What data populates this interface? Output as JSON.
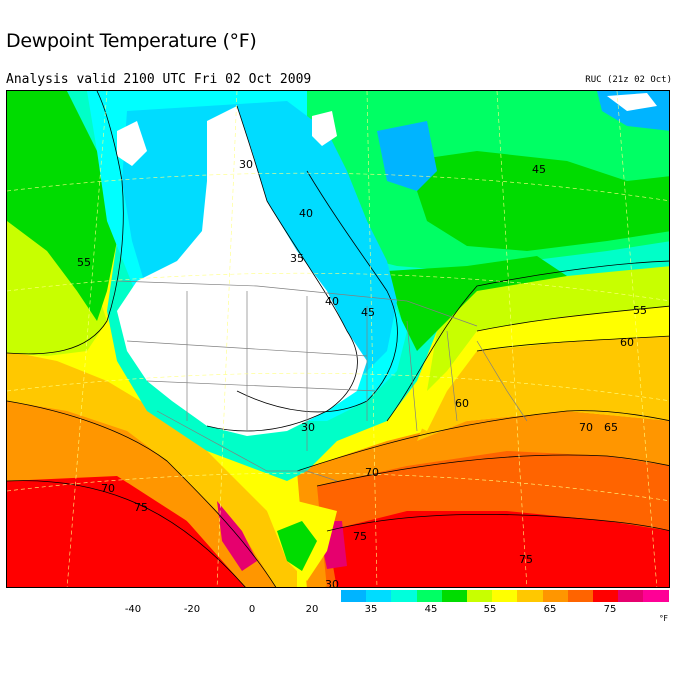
{
  "title": "Dewpoint Temperature (°F)",
  "subtitle": "Analysis valid 2100 UTC Fri 02 Oct 2009",
  "model_label": "RUC (21z 02 Oct)",
  "legend": {
    "unit": "°F",
    "ticks": [
      "-40",
      "-20",
      "0",
      "20",
      "35",
      "45",
      "55",
      "65",
      "75"
    ],
    "colors": [
      "#00b4ff",
      "#00dcff",
      "#00ffdc",
      "#00ff64",
      "#00dc00",
      "#c8ff00",
      "#ffff00",
      "#ffc800",
      "#ff9600",
      "#ff6400",
      "#ff0000",
      "#e6006e",
      "#ff0096"
    ]
  },
  "palette": {
    "white": "#ffffff",
    "cyan_light": "#00ffff",
    "cyan": "#00dcff",
    "sky": "#00b4ff",
    "teal": "#00ffc8",
    "green_light": "#00ff64",
    "green": "#00dc00",
    "lime": "#c8ff00",
    "yellow": "#ffff00",
    "gold": "#ffc800",
    "orange": "#ff9600",
    "orange_dark": "#ff6400",
    "red": "#ff0000",
    "magenta": "#e6006e"
  },
  "contour_labels": [
    "30",
    "40",
    "35",
    "40",
    "45",
    "45",
    "55",
    "55",
    "60",
    "60",
    "70",
    "65",
    "70",
    "70",
    "75",
    "75",
    "75",
    "30",
    "30"
  ]
}
